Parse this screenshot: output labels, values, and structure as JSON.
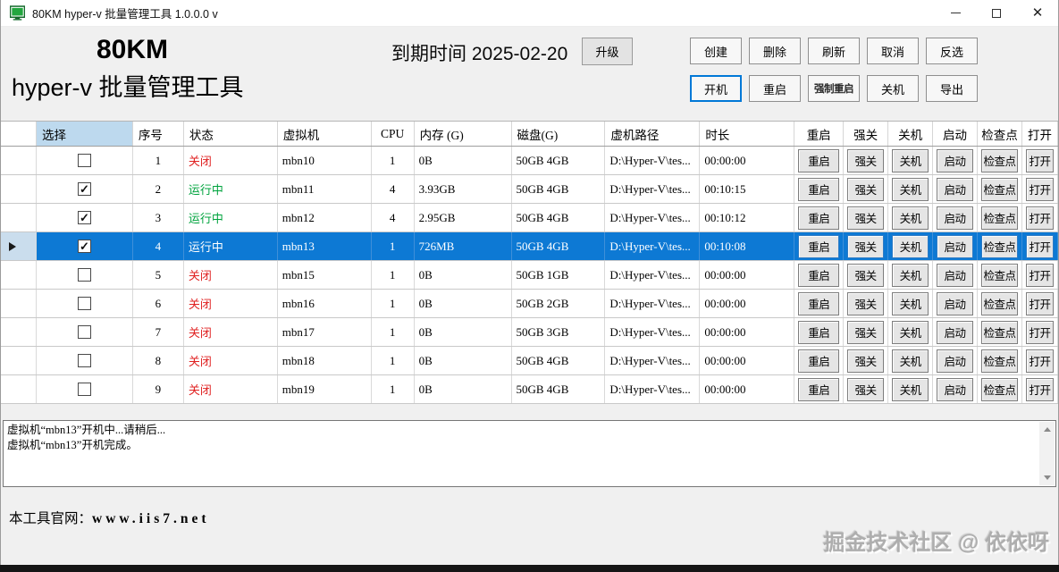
{
  "window": {
    "title": "80KM hyper-v 批量管理工具 1.0.0.0 v"
  },
  "header": {
    "brand_line1": "80KM",
    "brand_line2": "hyper-v 批量管理工具",
    "expiry_label": "到期时间",
    "expiry_date": "2025-02-20",
    "upgrade_label": "升级",
    "buttons_row1": [
      "创建",
      "删除",
      "刷新",
      "取消",
      "反选"
    ],
    "buttons_row2": [
      "开机",
      "重启",
      "强制重启",
      "关机",
      "导出"
    ]
  },
  "table": {
    "columns": [
      "",
      "选择",
      "序号",
      "状态",
      "虚拟机",
      "CPU",
      "内存 (G)",
      "磁盘(G)",
      "虚机路径",
      "时长",
      "重启",
      "强关",
      "关机",
      "启动",
      "检查点",
      "打开"
    ],
    "action_labels": [
      "重启",
      "强关",
      "关机",
      "启动",
      "检查点",
      "打开"
    ],
    "rows": [
      {
        "selected": false,
        "checked": false,
        "num": "1",
        "status": "关闭",
        "status_color": "red",
        "vm": "mbn10",
        "cpu": "1",
        "mem": "0B",
        "disk": "50GB 4GB",
        "path": "D:\\Hyper-V\\tes...",
        "time": "00:00:00"
      },
      {
        "selected": false,
        "checked": true,
        "num": "2",
        "status": "运行中",
        "status_color": "green",
        "vm": "mbn11",
        "cpu": "4",
        "mem": "3.93GB",
        "disk": "50GB 4GB",
        "path": "D:\\Hyper-V\\tes...",
        "time": "00:10:15"
      },
      {
        "selected": false,
        "checked": true,
        "num": "3",
        "status": "运行中",
        "status_color": "green",
        "vm": "mbn12",
        "cpu": "4",
        "mem": "2.95GB",
        "disk": "50GB 4GB",
        "path": "D:\\Hyper-V\\tes...",
        "time": "00:10:12"
      },
      {
        "selected": true,
        "checked": true,
        "num": "4",
        "status": "运行中",
        "status_color": "green",
        "vm": "mbn13",
        "cpu": "1",
        "mem": "726MB",
        "disk": "50GB 4GB",
        "path": "D:\\Hyper-V\\tes...",
        "time": "00:10:08"
      },
      {
        "selected": false,
        "checked": false,
        "num": "5",
        "status": "关闭",
        "status_color": "red",
        "vm": "mbn15",
        "cpu": "1",
        "mem": "0B",
        "disk": "50GB 1GB",
        "path": "D:\\Hyper-V\\tes...",
        "time": "00:00:00"
      },
      {
        "selected": false,
        "checked": false,
        "num": "6",
        "status": "关闭",
        "status_color": "red",
        "vm": "mbn16",
        "cpu": "1",
        "mem": "0B",
        "disk": "50GB 2GB",
        "path": "D:\\Hyper-V\\tes...",
        "time": "00:00:00"
      },
      {
        "selected": false,
        "checked": false,
        "num": "7",
        "status": "关闭",
        "status_color": "red",
        "vm": "mbn17",
        "cpu": "1",
        "mem": "0B",
        "disk": "50GB 3GB",
        "path": "D:\\Hyper-V\\tes...",
        "time": "00:00:00"
      },
      {
        "selected": false,
        "checked": false,
        "num": "8",
        "status": "关闭",
        "status_color": "red",
        "vm": "mbn18",
        "cpu": "1",
        "mem": "0B",
        "disk": "50GB 4GB",
        "path": "D:\\Hyper-V\\tes...",
        "time": "00:00:00"
      },
      {
        "selected": false,
        "checked": false,
        "num": "9",
        "status": "关闭",
        "status_color": "red",
        "vm": "mbn19",
        "cpu": "1",
        "mem": "0B",
        "disk": "50GB 4GB",
        "path": "D:\\Hyper-V\\tes...",
        "time": "00:00:00"
      }
    ]
  },
  "log": {
    "lines": [
      "虚拟机“mbn13”开机中...请稍后...",
      "虚拟机“mbn13”开机完成。"
    ]
  },
  "footer": {
    "site_prefix": "本工具官网：",
    "site_url": "www.iis7.net"
  },
  "watermark": "掘金技术社区 @ 依依呀",
  "colors": {
    "selection_blue": "#0d79d4",
    "focus_border_blue": "#0078d7",
    "status_off_red": "#e02222",
    "status_running_green": "#00a33e",
    "selected_column_header": "#bdd9ee",
    "current_row_indicator_bg": "#cadded"
  }
}
